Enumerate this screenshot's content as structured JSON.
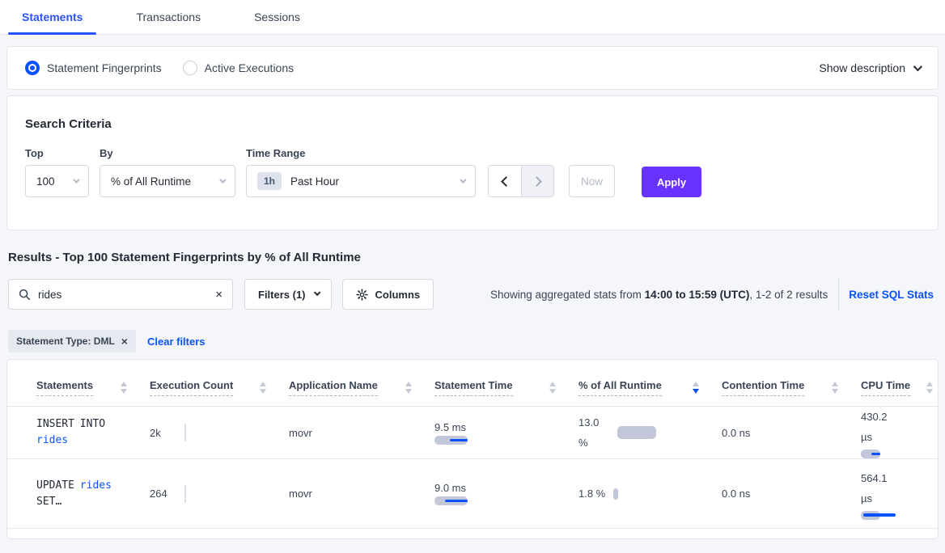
{
  "colors": {
    "accent_blue": "#0a52ff",
    "primary_purple": "#6933ff",
    "bar_gray": "#c2c8da",
    "page_background": "#f4f6fa"
  },
  "tabs": [
    {
      "label": "Statements",
      "active": true
    },
    {
      "label": "Transactions",
      "active": false
    },
    {
      "label": "Sessions",
      "active": false
    }
  ],
  "view_toggle": {
    "options": [
      {
        "label": "Statement Fingerprints",
        "selected": true
      },
      {
        "label": "Active Executions",
        "selected": false
      }
    ],
    "show_description_label": "Show description"
  },
  "search_criteria": {
    "title": "Search Criteria",
    "top": {
      "label": "Top",
      "value": "100"
    },
    "by": {
      "label": "By",
      "value": "% of All Runtime"
    },
    "time_range": {
      "label": "Time Range",
      "badge": "1h",
      "value": "Past Hour"
    },
    "now_label": "Now",
    "apply_label": "Apply"
  },
  "results": {
    "heading": "Results - Top 100 Statement Fingerprints by % of All Runtime",
    "search_value": "rides",
    "filters_label": "Filters (1)",
    "columns_label": "Columns",
    "stats_prefix": "Showing aggregated stats from ",
    "stats_range": "14:00 to 15:59 (UTC)",
    "stats_suffix": ", 1-2 of 2 results",
    "reset_label": "Reset SQL Stats",
    "filter_chip": "Statement Type: DML",
    "clear_filters_label": "Clear filters"
  },
  "table": {
    "columns": [
      {
        "label": "Statements",
        "sort": "none"
      },
      {
        "label": "Execution Count",
        "sort": "none"
      },
      {
        "label": "Application Name",
        "sort": "none"
      },
      {
        "label": "Statement Time",
        "sort": "none"
      },
      {
        "label": "% of All Runtime",
        "sort": "desc"
      },
      {
        "label": "Contention Time",
        "sort": "none"
      },
      {
        "label": "CPU Time",
        "sort": "none"
      }
    ],
    "rows": [
      {
        "statement": {
          "pre": "INSERT INTO ",
          "link": "rides",
          "post": ""
        },
        "execution_count": "2k",
        "application_name": "movr",
        "statement_time": {
          "value": "9.5 ms",
          "bar": {
            "gw": 41,
            "gh": 11,
            "bw": 22,
            "bh": 3,
            "align": "right"
          }
        },
        "pct_runtime": {
          "value": "13.0 %",
          "bar": {
            "gw": 48,
            "gh": 16,
            "bw": 0,
            "bh": 0,
            "align": "right"
          }
        },
        "contention_time": {
          "value": "0.0 ns"
        },
        "cpu_time": {
          "value": "430.2 µs",
          "bar": {
            "gw": 24,
            "gh": 11,
            "bw": 11,
            "bh": 3,
            "align": "right"
          }
        }
      },
      {
        "statement": {
          "pre": "UPDATE ",
          "link": "rides",
          "post": " SET…"
        },
        "execution_count": "264",
        "application_name": "movr",
        "statement_time": {
          "value": "9.0 ms",
          "bar": {
            "gw": 41,
            "gh": 11,
            "bw": 28,
            "bh": 3,
            "align": "right"
          }
        },
        "pct_runtime": {
          "value": "1.8 %",
          "bar": {
            "gw": 6,
            "gh": 14,
            "bw": 0,
            "bh": 0,
            "align": "right"
          }
        },
        "contention_time": {
          "value": "0.0 ns"
        },
        "cpu_time": {
          "value": "564.1 µs",
          "bar": {
            "gw": 24,
            "gh": 11,
            "bw": 40,
            "bh": 4,
            "align": "left",
            "bl": 3
          }
        }
      }
    ]
  }
}
